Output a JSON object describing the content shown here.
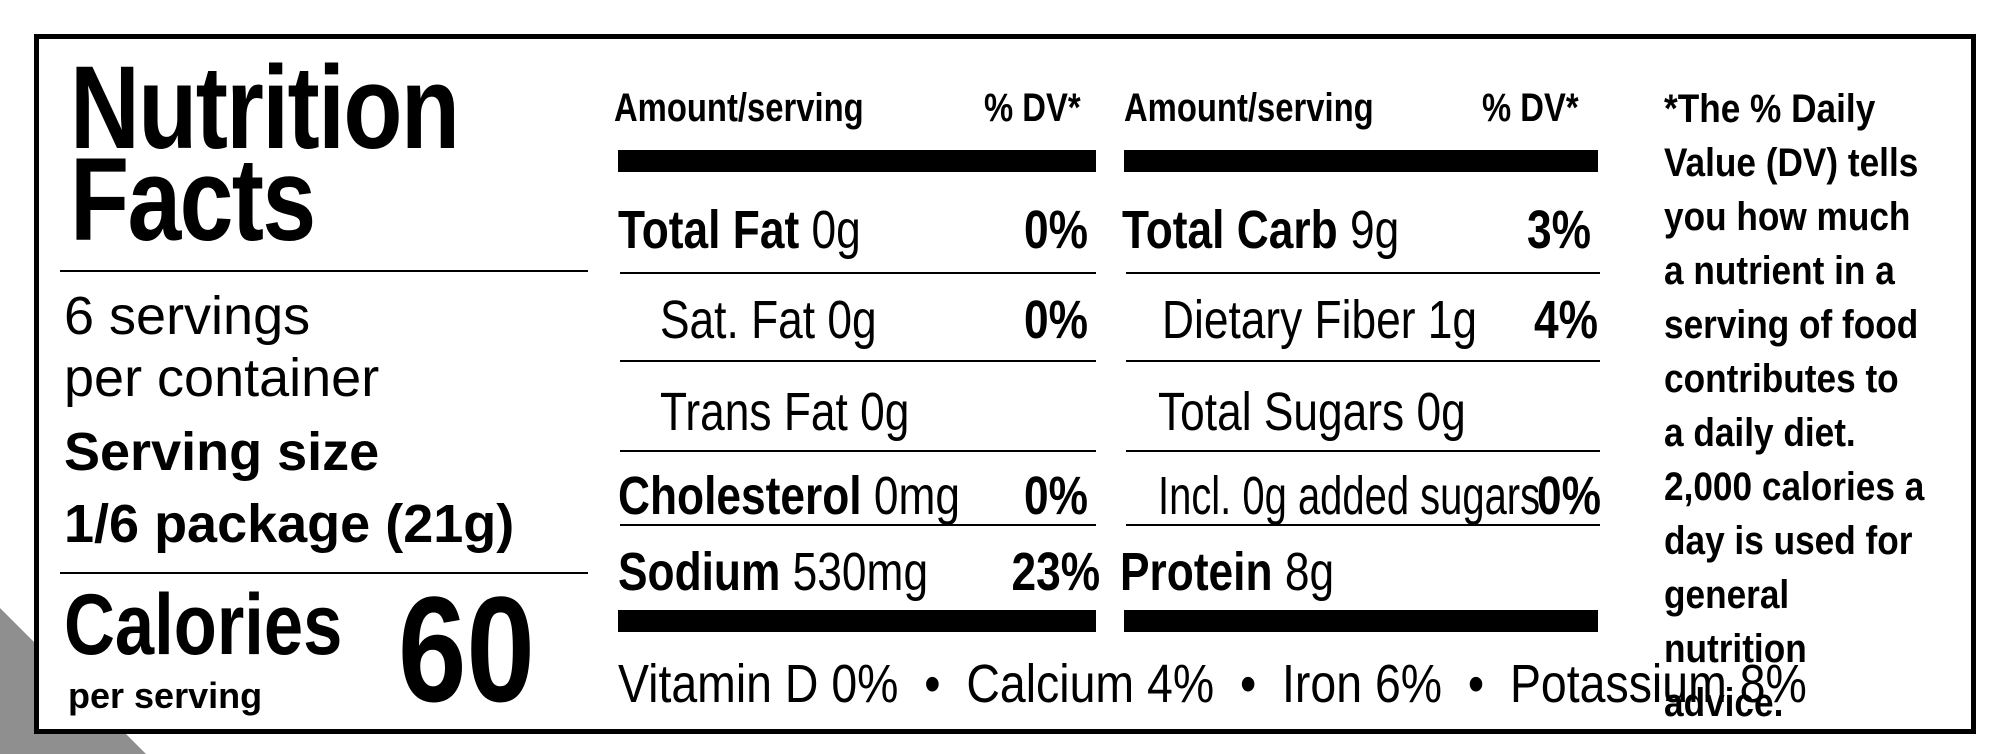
{
  "title_line1": "Nutrition",
  "title_line2": "Facts",
  "servings_line1": "6 servings",
  "servings_line2": "per container",
  "serving_size_label": "Serving size",
  "serving_size_value": "1/6 package (21g)",
  "calories_label": "Calories",
  "calories_sub": "per serving",
  "calories_value": "60",
  "left_table": {
    "header_amount": "Amount/serving",
    "header_dv": "% DV*",
    "rows": [
      {
        "name": "Total Fat",
        "amount": "0g",
        "dv": "0%"
      },
      {
        "name": "Sat. Fat",
        "amount": "0g",
        "dv": "0%"
      },
      {
        "name": "Trans Fat",
        "amount": "0g",
        "dv": ""
      },
      {
        "name": "Cholesterol",
        "amount": "0mg",
        "dv": "0%"
      },
      {
        "name": "Sodium",
        "amount": "530mg",
        "dv": "23%"
      }
    ]
  },
  "right_table": {
    "header_amount": "Amount/serving",
    "header_dv": "% DV*",
    "rows": [
      {
        "name": "Total Carb",
        "amount": "9g",
        "dv": "3%"
      },
      {
        "name": "Dietary Fiber",
        "amount": "1g",
        "dv": "4%"
      },
      {
        "name": "Total Sugars",
        "amount": "0g",
        "dv": ""
      },
      {
        "name": "Incl. 0g added sugars",
        "amount": "",
        "dv": "0%"
      },
      {
        "name": "Protein",
        "amount": "8g",
        "dv": ""
      }
    ]
  },
  "footnote": "*The % Daily Value (DV) tells you how much a nutrient in a serving of food contributes to a daily diet. 2,000 calories a day is used for general nutrition advice.",
  "vitamins": {
    "vitamin_d": "Vitamin D 0%",
    "calcium": "Calcium 4%",
    "iron": "Iron 6%",
    "potassium": "Potassium 8%",
    "bullet": "•"
  }
}
